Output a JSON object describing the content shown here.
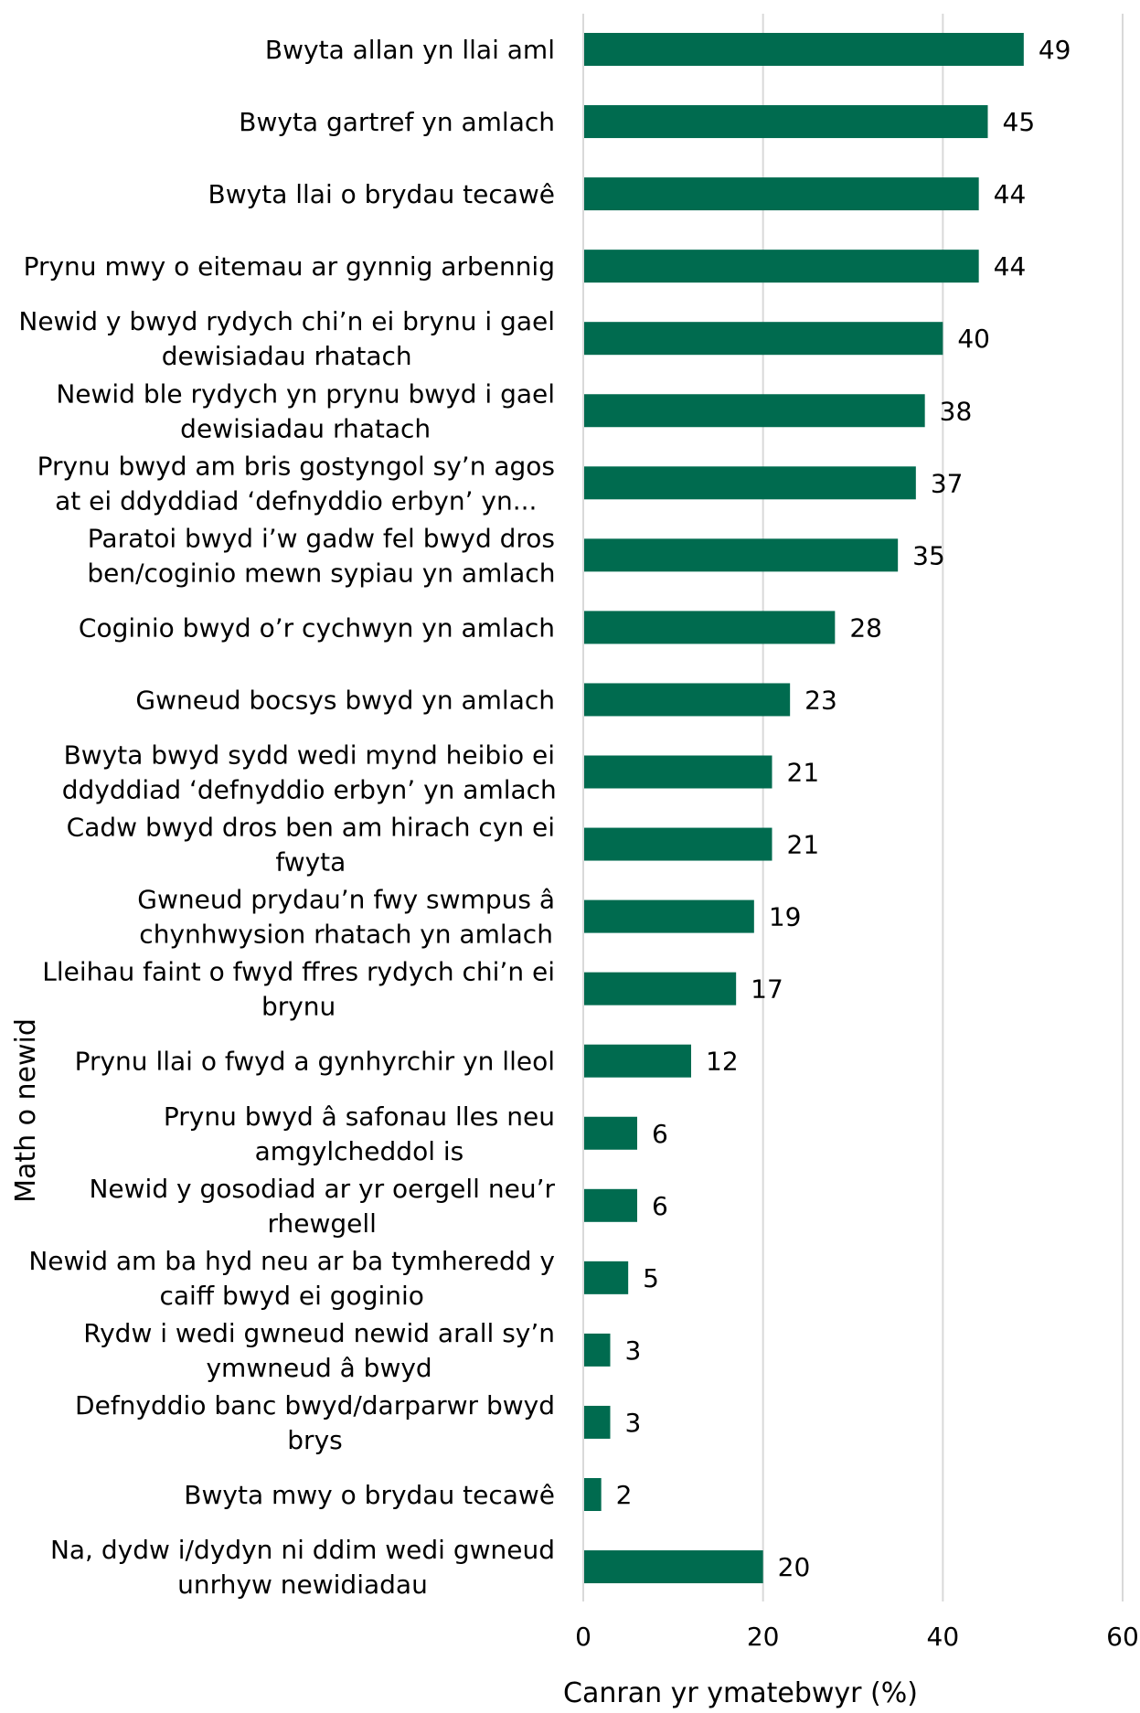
{
  "chart_data": {
    "type": "bar",
    "orientation": "horizontal",
    "categories": [
      "Bwyta allan yn llai aml",
      "Bwyta gartref yn amlach",
      "Bwyta llai o brydau tecawê",
      "Prynu mwy o eitemau ar gynnig arbennig",
      "Newid y bwyd rydych chi’n ei brynu i gael dewisiadau rhatach",
      "Newid ble rydych yn prynu bwyd i gael dewisiadau rhatach",
      "Prynu bwyd am bris gostyngol sy’n agos at ei ddyddiad ‘defnyddio erbyn’ yn...",
      "Paratoi bwyd i’w gadw fel bwyd dros ben/coginio mewn sypiau yn amlach",
      "Coginio bwyd o’r cychwyn yn amlach",
      "Gwneud bocsys bwyd yn amlach",
      "Bwyta bwyd sydd wedi mynd heibio ei ddyddiad ‘defnyddio erbyn’ yn amlach",
      "Cadw bwyd dros ben am hirach cyn ei fwyta",
      "Gwneud prydau’n fwy swmpus â chynhwysion rhatach yn amlach",
      "Lleihau faint o fwyd ffres rydych chi’n ei brynu",
      "Prynu llai o fwyd a gynhyrchir yn lleol",
      "Prynu bwyd â safonau lles neu amgylcheddol is",
      "Newid y gosodiad ar yr oergell neu’r rhewgell",
      "Newid am ba hyd neu ar ba tymheredd y caiff bwyd ei goginio",
      "Rydw i wedi gwneud newid arall sy’n ymwneud â bwyd",
      "Defnyddio banc bwyd/darparwr bwyd brys",
      "Bwyta mwy o brydau tecawê",
      "Na, dydw i/dydyn ni ddim wedi gwneud unrhyw newidiadau"
    ],
    "category_lines": [
      [
        "Bwyta allan yn llai aml"
      ],
      [
        "Bwyta gartref yn amlach"
      ],
      [
        "Bwyta llai o brydau tecawê"
      ],
      [
        "Prynu mwy o eitemau ar gynnig arbennig"
      ],
      [
        "Newid y bwyd rydych chi’n ei brynu i gael",
        "dewisiadau rhatach"
      ],
      [
        "Newid ble rydych yn prynu bwyd i gael",
        "dewisiadau rhatach"
      ],
      [
        "Prynu bwyd am bris gostyngol sy’n agos",
        "at ei ddyddiad ‘defnyddio erbyn’ yn..."
      ],
      [
        "Paratoi bwyd i’w gadw fel bwyd dros",
        "ben/coginio mewn sypiau yn amlach"
      ],
      [
        "Coginio bwyd o’r cychwyn yn amlach"
      ],
      [
        "Gwneud bocsys bwyd yn amlach"
      ],
      [
        "Bwyta bwyd sydd wedi mynd heibio ei",
        "ddyddiad ‘defnyddio erbyn’ yn amlach"
      ],
      [
        "Cadw bwyd dros ben am hirach cyn ei",
        "fwyta"
      ],
      [
        "Gwneud prydau’n fwy swmpus â",
        "chynhwysion rhatach yn amlach"
      ],
      [
        "Lleihau faint o fwyd ffres rydych chi’n ei",
        "brynu"
      ],
      [
        "Prynu llai o fwyd a gynhyrchir yn lleol"
      ],
      [
        "Prynu bwyd â safonau lles neu",
        "amgylcheddol is"
      ],
      [
        "Newid y gosodiad ar yr oergell neu’r",
        "rhewgell"
      ],
      [
        "Newid am ba hyd neu ar ba tymheredd y",
        "caiff bwyd ei goginio"
      ],
      [
        "Rydw i wedi gwneud newid arall sy’n",
        "ymwneud â bwyd"
      ],
      [
        "Defnyddio banc bwyd/darparwr bwyd",
        "brys"
      ],
      [
        "Bwyta mwy o brydau tecawê"
      ],
      [
        "Na, dydw i/dydyn ni ddim wedi gwneud",
        "unrhyw newidiadau"
      ]
    ],
    "values": [
      49,
      45,
      44,
      44,
      40,
      38,
      37,
      35,
      28,
      23,
      21,
      21,
      19,
      17,
      12,
      6,
      6,
      5,
      3,
      3,
      2,
      20
    ],
    "xlabel": "Canran yr ymatebwyr (%)",
    "ylabel": "Math o newid",
    "xlim": [
      0,
      60
    ],
    "xticks": [
      0,
      20,
      40,
      60
    ],
    "grid": true,
    "bar_color": "#006b4f",
    "grid_color": "#d9d9d9"
  }
}
